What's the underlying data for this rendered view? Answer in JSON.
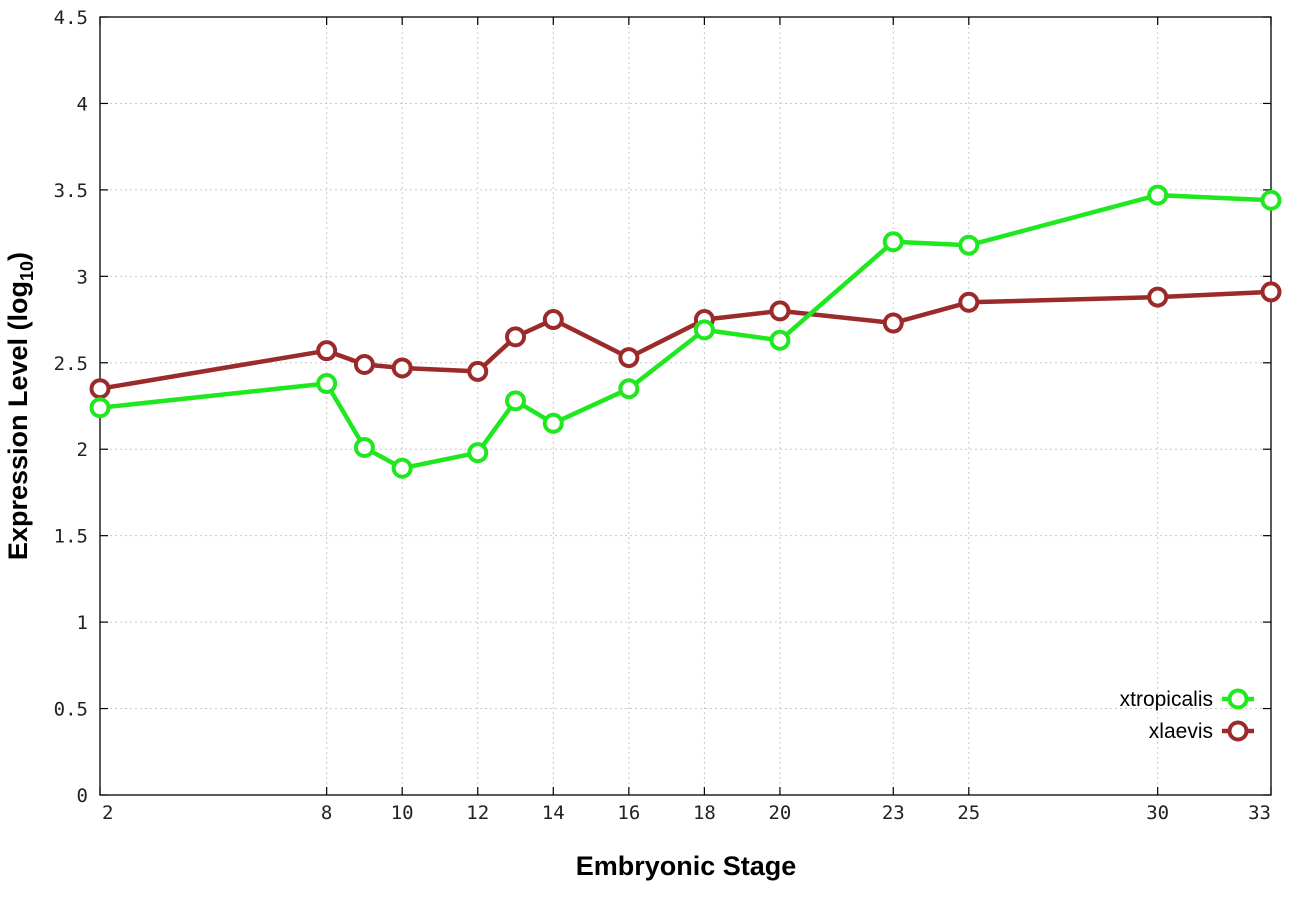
{
  "chart_data": {
    "type": "line",
    "xlabel": "Embryonic Stage",
    "ylabel_main": "Expression Level (log",
    "ylabel_sub": "10",
    "ylabel_close": ")",
    "ylim": [
      0,
      4.5
    ],
    "yticks": [
      0,
      0.5,
      1,
      1.5,
      2,
      2.5,
      3,
      3.5,
      4,
      4.5
    ],
    "ytick_labels": [
      "0",
      "0.5",
      "1",
      "1.5",
      "2",
      "2.5",
      "3",
      "3.5",
      "4",
      "4.5"
    ],
    "x_categories": [
      "2",
      "8",
      "9",
      "10",
      "12",
      "13",
      "14",
      "16",
      "18",
      "20",
      "23",
      "25",
      "30",
      "33"
    ],
    "xtick_labels": [
      "2",
      "8",
      "10",
      "12",
      "14",
      "16",
      "18",
      "20",
      "23",
      "25",
      "30",
      "33"
    ],
    "grid": true,
    "legend_position": "bottom-right",
    "series": [
      {
        "name": "xtropicalis",
        "color": "#1fe81f",
        "x": [
          "2",
          "8",
          "9",
          "10",
          "12",
          "13",
          "14",
          "16",
          "18",
          "20",
          "23",
          "25",
          "30",
          "33"
        ],
        "values": [
          2.24,
          2.38,
          2.01,
          1.89,
          1.98,
          2.28,
          2.15,
          2.35,
          2.69,
          2.63,
          3.2,
          3.18,
          3.47,
          3.44
        ]
      },
      {
        "name": "xlaevis",
        "color": "#9b2a2a",
        "x": [
          "2",
          "8",
          "9",
          "10",
          "12",
          "13",
          "14",
          "16",
          "18",
          "20",
          "23",
          "25",
          "30",
          "33"
        ],
        "values": [
          2.35,
          2.57,
          2.49,
          2.47,
          2.45,
          2.65,
          2.75,
          2.53,
          2.75,
          2.8,
          2.73,
          2.85,
          2.88,
          2.91
        ]
      }
    ]
  }
}
